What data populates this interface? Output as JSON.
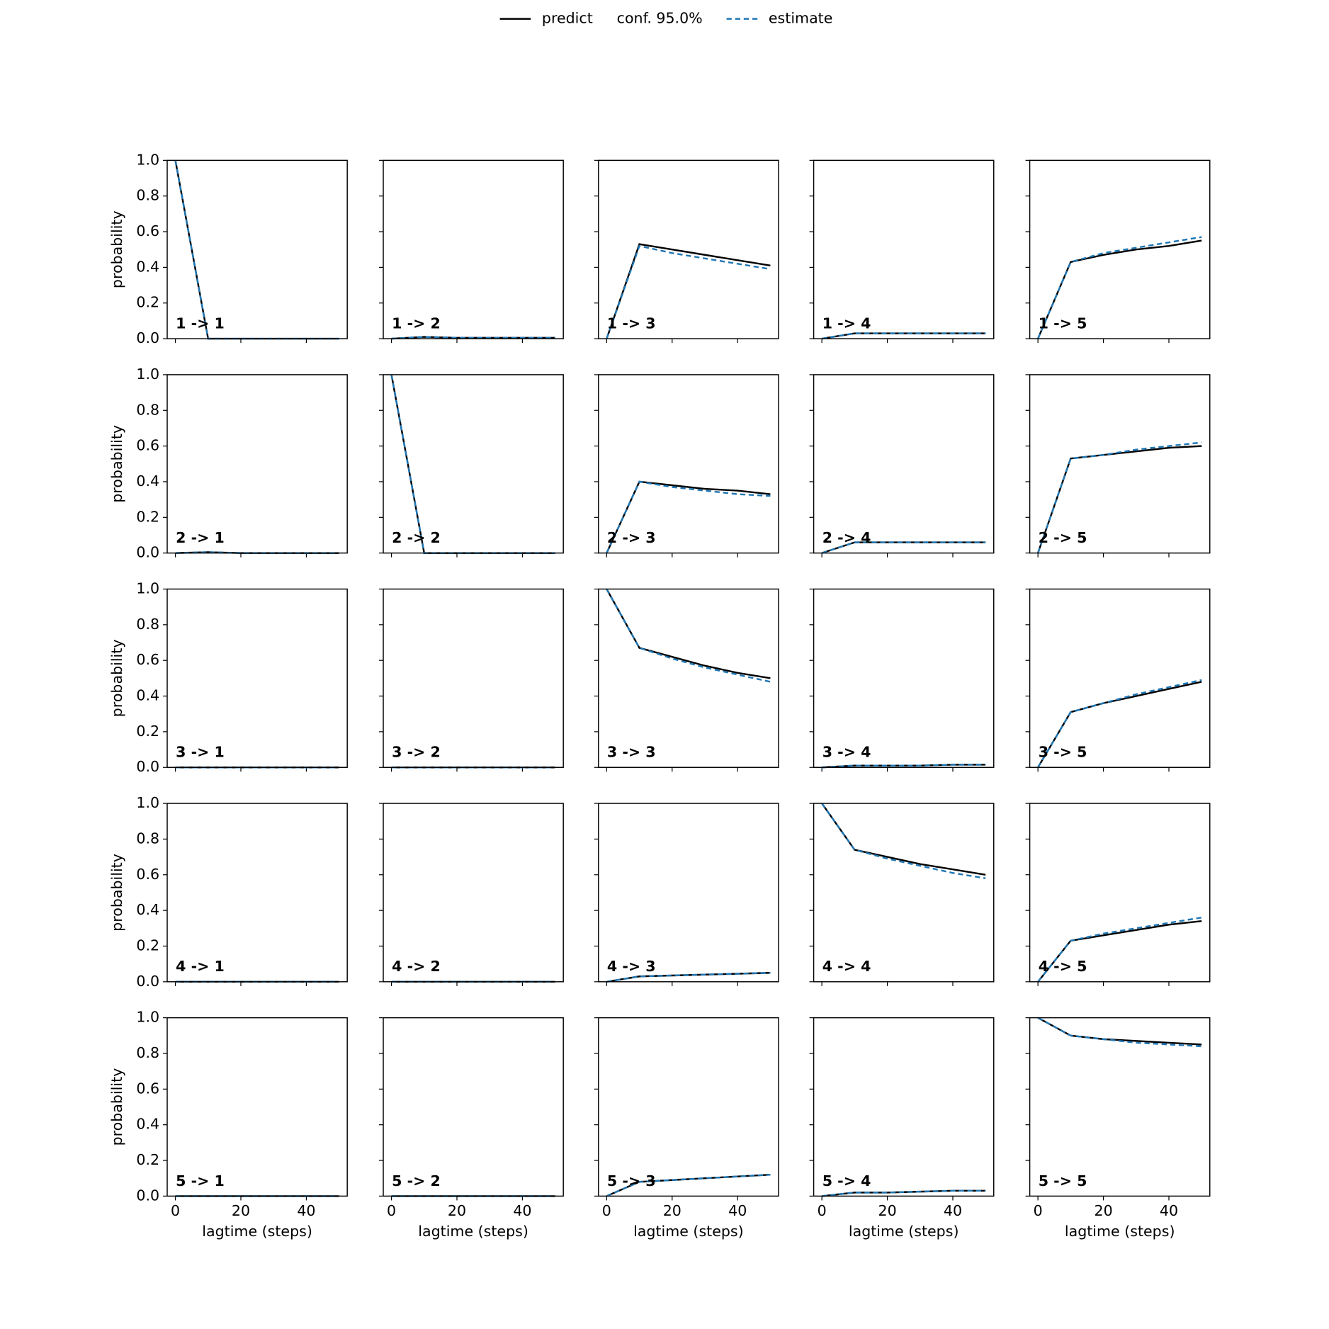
{
  "legend": [
    {
      "name": "predict",
      "color": "#000000",
      "dashed": false
    },
    {
      "name": "conf. 95.0%"
    },
    {
      "name": "estimate",
      "color": "#1f77b4",
      "dashed": true
    }
  ],
  "chart_data": [
    {
      "type": "line",
      "title": "1 -> 1",
      "ylabel": "probability",
      "ylim": [
        0,
        1
      ],
      "yticks": [
        {
          "value": 0,
          "label": "0.0"
        },
        {
          "value": 0.2,
          "label": "0.2"
        },
        {
          "value": 0.4,
          "label": "0.4"
        },
        {
          "value": 0.6,
          "label": "0.6"
        },
        {
          "value": 0.8,
          "label": "0.8"
        },
        {
          "value": 1,
          "label": "1.0"
        }
      ],
      "x": [
        0,
        10,
        20,
        30,
        40,
        50
      ],
      "series": [
        {
          "color": "#000000",
          "values": [
            1,
            0,
            0,
            0,
            0,
            0
          ]
        },
        {
          "color": "#1f77b4",
          "dashed": true,
          "values": [
            1,
            0,
            0,
            0,
            0,
            0
          ]
        }
      ]
    },
    {
      "type": "line",
      "title": "1 -> 2",
      "x": [
        0,
        10,
        20,
        30,
        40,
        50
      ],
      "series": [
        {
          "color": "#000000",
          "values": [
            0,
            0.01,
            0.005,
            0.005,
            0.005,
            0.005
          ]
        },
        {
          "color": "#1f77b4",
          "dashed": true,
          "values": [
            0,
            0.01,
            0.005,
            0.005,
            0.005,
            0.005
          ]
        }
      ]
    },
    {
      "type": "line",
      "title": "1 -> 3",
      "x": [
        0,
        10,
        20,
        30,
        40,
        50
      ],
      "series": [
        {
          "color": "#000000",
          "values": [
            0,
            0.53,
            0.5,
            0.47,
            0.44,
            0.41
          ]
        },
        {
          "color": "#1f77b4",
          "dashed": true,
          "values": [
            0,
            0.52,
            0.48,
            0.45,
            0.42,
            0.39
          ]
        }
      ]
    },
    {
      "type": "line",
      "title": "1 -> 4",
      "x": [
        0,
        10,
        20,
        30,
        40,
        50
      ],
      "series": [
        {
          "color": "#000000",
          "values": [
            0,
            0.03,
            0.03,
            0.03,
            0.03,
            0.03
          ]
        },
        {
          "color": "#1f77b4",
          "dashed": true,
          "values": [
            0,
            0.03,
            0.03,
            0.03,
            0.03,
            0.03
          ]
        }
      ]
    },
    {
      "type": "line",
      "title": "1 -> 5",
      "x": [
        0,
        10,
        20,
        30,
        40,
        50
      ],
      "series": [
        {
          "color": "#000000",
          "values": [
            0,
            0.43,
            0.47,
            0.5,
            0.52,
            0.55
          ]
        },
        {
          "color": "#1f77b4",
          "dashed": true,
          "values": [
            0,
            0.43,
            0.48,
            0.51,
            0.54,
            0.57
          ]
        }
      ]
    },
    {
      "type": "line",
      "title": "2 -> 1",
      "ylabel": "probability",
      "ylim": [
        0,
        1
      ],
      "yticks": [
        {
          "value": 0,
          "label": "0.0"
        },
        {
          "value": 0.2,
          "label": "0.2"
        },
        {
          "value": 0.4,
          "label": "0.4"
        },
        {
          "value": 0.6,
          "label": "0.6"
        },
        {
          "value": 0.8,
          "label": "0.8"
        },
        {
          "value": 1,
          "label": "1.0"
        }
      ],
      "x": [
        0,
        10,
        20,
        30,
        40,
        50
      ],
      "series": [
        {
          "color": "#000000",
          "values": [
            0,
            0.005,
            0,
            0,
            0,
            0
          ]
        },
        {
          "color": "#1f77b4",
          "dashed": true,
          "values": [
            0,
            0.005,
            0,
            0,
            0,
            0
          ]
        }
      ]
    },
    {
      "type": "line",
      "title": "2 -> 2",
      "x": [
        0,
        10,
        20,
        30,
        40,
        50
      ],
      "series": [
        {
          "color": "#000000",
          "values": [
            1,
            0,
            0,
            0,
            0,
            0
          ]
        },
        {
          "color": "#1f77b4",
          "dashed": true,
          "values": [
            1,
            0,
            0,
            0,
            0,
            0
          ]
        }
      ]
    },
    {
      "type": "line",
      "title": "2 -> 3",
      "x": [
        0,
        10,
        20,
        30,
        40,
        50
      ],
      "series": [
        {
          "color": "#000000",
          "values": [
            0,
            0.4,
            0.38,
            0.36,
            0.35,
            0.33
          ]
        },
        {
          "color": "#1f77b4",
          "dashed": true,
          "values": [
            0,
            0.4,
            0.37,
            0.35,
            0.33,
            0.32
          ]
        }
      ]
    },
    {
      "type": "line",
      "title": "2 -> 4",
      "x": [
        0,
        10,
        20,
        30,
        40,
        50
      ],
      "series": [
        {
          "color": "#000000",
          "values": [
            0,
            0.06,
            0.06,
            0.06,
            0.06,
            0.06
          ]
        },
        {
          "color": "#1f77b4",
          "dashed": true,
          "values": [
            0,
            0.06,
            0.06,
            0.06,
            0.06,
            0.06
          ]
        }
      ]
    },
    {
      "type": "line",
      "title": "2 -> 5",
      "x": [
        0,
        10,
        20,
        30,
        40,
        50
      ],
      "series": [
        {
          "color": "#000000",
          "values": [
            0,
            0.53,
            0.55,
            0.57,
            0.59,
            0.6
          ]
        },
        {
          "color": "#1f77b4",
          "dashed": true,
          "values": [
            0,
            0.53,
            0.55,
            0.58,
            0.6,
            0.62
          ]
        }
      ]
    },
    {
      "type": "line",
      "title": "3 -> 1",
      "ylabel": "probability",
      "ylim": [
        0,
        1
      ],
      "yticks": [
        {
          "value": 0,
          "label": "0.0"
        },
        {
          "value": 0.2,
          "label": "0.2"
        },
        {
          "value": 0.4,
          "label": "0.4"
        },
        {
          "value": 0.6,
          "label": "0.6"
        },
        {
          "value": 0.8,
          "label": "0.8"
        },
        {
          "value": 1,
          "label": "1.0"
        }
      ],
      "x": [
        0,
        10,
        20,
        30,
        40,
        50
      ],
      "series": [
        {
          "color": "#000000",
          "values": [
            0,
            0,
            0,
            0,
            0,
            0
          ]
        },
        {
          "color": "#1f77b4",
          "dashed": true,
          "values": [
            0,
            0,
            0,
            0,
            0,
            0
          ]
        }
      ]
    },
    {
      "type": "line",
      "title": "3 -> 2",
      "x": [
        0,
        10,
        20,
        30,
        40,
        50
      ],
      "series": [
        {
          "color": "#000000",
          "values": [
            0,
            0,
            0,
            0,
            0,
            0
          ]
        },
        {
          "color": "#1f77b4",
          "dashed": true,
          "values": [
            0,
            0,
            0,
            0,
            0,
            0
          ]
        }
      ]
    },
    {
      "type": "line",
      "title": "3 -> 3",
      "x": [
        0,
        10,
        20,
        30,
        40,
        50
      ],
      "series": [
        {
          "color": "#000000",
          "values": [
            1,
            0.67,
            0.62,
            0.57,
            0.53,
            0.5
          ]
        },
        {
          "color": "#1f77b4",
          "dashed": true,
          "values": [
            1,
            0.67,
            0.61,
            0.56,
            0.52,
            0.48
          ]
        }
      ]
    },
    {
      "type": "line",
      "title": "3 -> 4",
      "x": [
        0,
        10,
        20,
        30,
        40,
        50
      ],
      "series": [
        {
          "color": "#000000",
          "values": [
            0,
            0.01,
            0.01,
            0.01,
            0.015,
            0.015
          ]
        },
        {
          "color": "#1f77b4",
          "dashed": true,
          "values": [
            0,
            0.01,
            0.01,
            0.01,
            0.015,
            0.015
          ]
        }
      ]
    },
    {
      "type": "line",
      "title": "3 -> 5",
      "x": [
        0,
        10,
        20,
        30,
        40,
        50
      ],
      "series": [
        {
          "color": "#000000",
          "values": [
            0,
            0.31,
            0.36,
            0.4,
            0.44,
            0.48
          ]
        },
        {
          "color": "#1f77b4",
          "dashed": true,
          "values": [
            0,
            0.31,
            0.36,
            0.41,
            0.45,
            0.49
          ]
        }
      ]
    },
    {
      "type": "line",
      "title": "4 -> 1",
      "ylabel": "probability",
      "ylim": [
        0,
        1
      ],
      "yticks": [
        {
          "value": 0,
          "label": "0.0"
        },
        {
          "value": 0.2,
          "label": "0.2"
        },
        {
          "value": 0.4,
          "label": "0.4"
        },
        {
          "value": 0.6,
          "label": "0.6"
        },
        {
          "value": 0.8,
          "label": "0.8"
        },
        {
          "value": 1,
          "label": "1.0"
        }
      ],
      "x": [
        0,
        10,
        20,
        30,
        40,
        50
      ],
      "series": [
        {
          "color": "#000000",
          "values": [
            0,
            0,
            0,
            0,
            0,
            0
          ]
        },
        {
          "color": "#1f77b4",
          "dashed": true,
          "values": [
            0,
            0,
            0,
            0,
            0,
            0
          ]
        }
      ]
    },
    {
      "type": "line",
      "title": "4 -> 2",
      "x": [
        0,
        10,
        20,
        30,
        40,
        50
      ],
      "series": [
        {
          "color": "#000000",
          "values": [
            0,
            0,
            0,
            0,
            0,
            0
          ]
        },
        {
          "color": "#1f77b4",
          "dashed": true,
          "values": [
            0,
            0,
            0,
            0,
            0,
            0
          ]
        }
      ]
    },
    {
      "type": "line",
      "title": "4 -> 3",
      "x": [
        0,
        10,
        20,
        30,
        40,
        50
      ],
      "series": [
        {
          "color": "#000000",
          "values": [
            0,
            0.03,
            0.035,
            0.04,
            0.045,
            0.05
          ]
        },
        {
          "color": "#1f77b4",
          "dashed": true,
          "values": [
            0,
            0.03,
            0.035,
            0.04,
            0.045,
            0.05
          ]
        }
      ]
    },
    {
      "type": "line",
      "title": "4 -> 4",
      "x": [
        0,
        10,
        20,
        30,
        40,
        50
      ],
      "series": [
        {
          "color": "#000000",
          "values": [
            1,
            0.74,
            0.7,
            0.66,
            0.63,
            0.6
          ]
        },
        {
          "color": "#1f77b4",
          "dashed": true,
          "values": [
            1,
            0.74,
            0.69,
            0.65,
            0.61,
            0.58
          ]
        }
      ]
    },
    {
      "type": "line",
      "title": "4 -> 5",
      "x": [
        0,
        10,
        20,
        30,
        40,
        50
      ],
      "series": [
        {
          "color": "#000000",
          "values": [
            0,
            0.23,
            0.26,
            0.29,
            0.32,
            0.34
          ]
        },
        {
          "color": "#1f77b4",
          "dashed": true,
          "values": [
            0,
            0.23,
            0.27,
            0.3,
            0.33,
            0.36
          ]
        }
      ]
    },
    {
      "type": "line",
      "title": "5 -> 1",
      "ylabel": "probability",
      "xlabel": "lagtime (steps)",
      "ylim": [
        0,
        1
      ],
      "yticks": [
        {
          "value": 0,
          "label": "0.0"
        },
        {
          "value": 0.2,
          "label": "0.2"
        },
        {
          "value": 0.4,
          "label": "0.4"
        },
        {
          "value": 0.6,
          "label": "0.6"
        },
        {
          "value": 0.8,
          "label": "0.8"
        },
        {
          "value": 1,
          "label": "1.0"
        }
      ],
      "xlim": [
        -2.5,
        52.5
      ],
      "xticks": [
        0,
        20,
        40
      ],
      "x": [
        0,
        10,
        20,
        30,
        40,
        50
      ],
      "series": [
        {
          "color": "#000000",
          "values": [
            0,
            0,
            0,
            0,
            0,
            0
          ]
        },
        {
          "color": "#1f77b4",
          "dashed": true,
          "values": [
            0,
            0,
            0,
            0,
            0,
            0
          ]
        }
      ]
    },
    {
      "type": "line",
      "title": "5 -> 2",
      "xlabel": "lagtime (steps)",
      "xlim": [
        -2.5,
        52.5
      ],
      "xticks": [
        0,
        20,
        40
      ],
      "x": [
        0,
        10,
        20,
        30,
        40,
        50
      ],
      "series": [
        {
          "color": "#000000",
          "values": [
            0,
            0,
            0,
            0,
            0,
            0
          ]
        },
        {
          "color": "#1f77b4",
          "dashed": true,
          "values": [
            0,
            0,
            0,
            0,
            0,
            0
          ]
        }
      ]
    },
    {
      "type": "line",
      "title": "5 -> 3",
      "xlabel": "lagtime (steps)",
      "xlim": [
        -2.5,
        52.5
      ],
      "xticks": [
        0,
        20,
        40
      ],
      "x": [
        0,
        10,
        20,
        30,
        40,
        50
      ],
      "series": [
        {
          "color": "#000000",
          "values": [
            0,
            0.08,
            0.09,
            0.1,
            0.11,
            0.12
          ]
        },
        {
          "color": "#1f77b4",
          "dashed": true,
          "values": [
            0,
            0.08,
            0.09,
            0.1,
            0.11,
            0.12
          ]
        }
      ]
    },
    {
      "type": "line",
      "title": "5 -> 4",
      "xlabel": "lagtime (steps)",
      "xlim": [
        -2.5,
        52.5
      ],
      "xticks": [
        0,
        20,
        40
      ],
      "x": [
        0,
        10,
        20,
        30,
        40,
        50
      ],
      "series": [
        {
          "color": "#000000",
          "values": [
            0,
            0.02,
            0.02,
            0.025,
            0.03,
            0.03
          ]
        },
        {
          "color": "#1f77b4",
          "dashed": true,
          "values": [
            0,
            0.02,
            0.02,
            0.025,
            0.03,
            0.03
          ]
        }
      ]
    },
    {
      "type": "line",
      "title": "5 -> 5",
      "xlabel": "lagtime (steps)",
      "xlim": [
        -2.5,
        52.5
      ],
      "xticks": [
        0,
        20,
        40
      ],
      "x": [
        0,
        10,
        20,
        30,
        40,
        50
      ],
      "series": [
        {
          "color": "#000000",
          "values": [
            1,
            0.9,
            0.88,
            0.87,
            0.86,
            0.85
          ]
        },
        {
          "color": "#1f77b4",
          "dashed": true,
          "values": [
            1,
            0.9,
            0.88,
            0.86,
            0.85,
            0.84
          ]
        }
      ]
    }
  ]
}
